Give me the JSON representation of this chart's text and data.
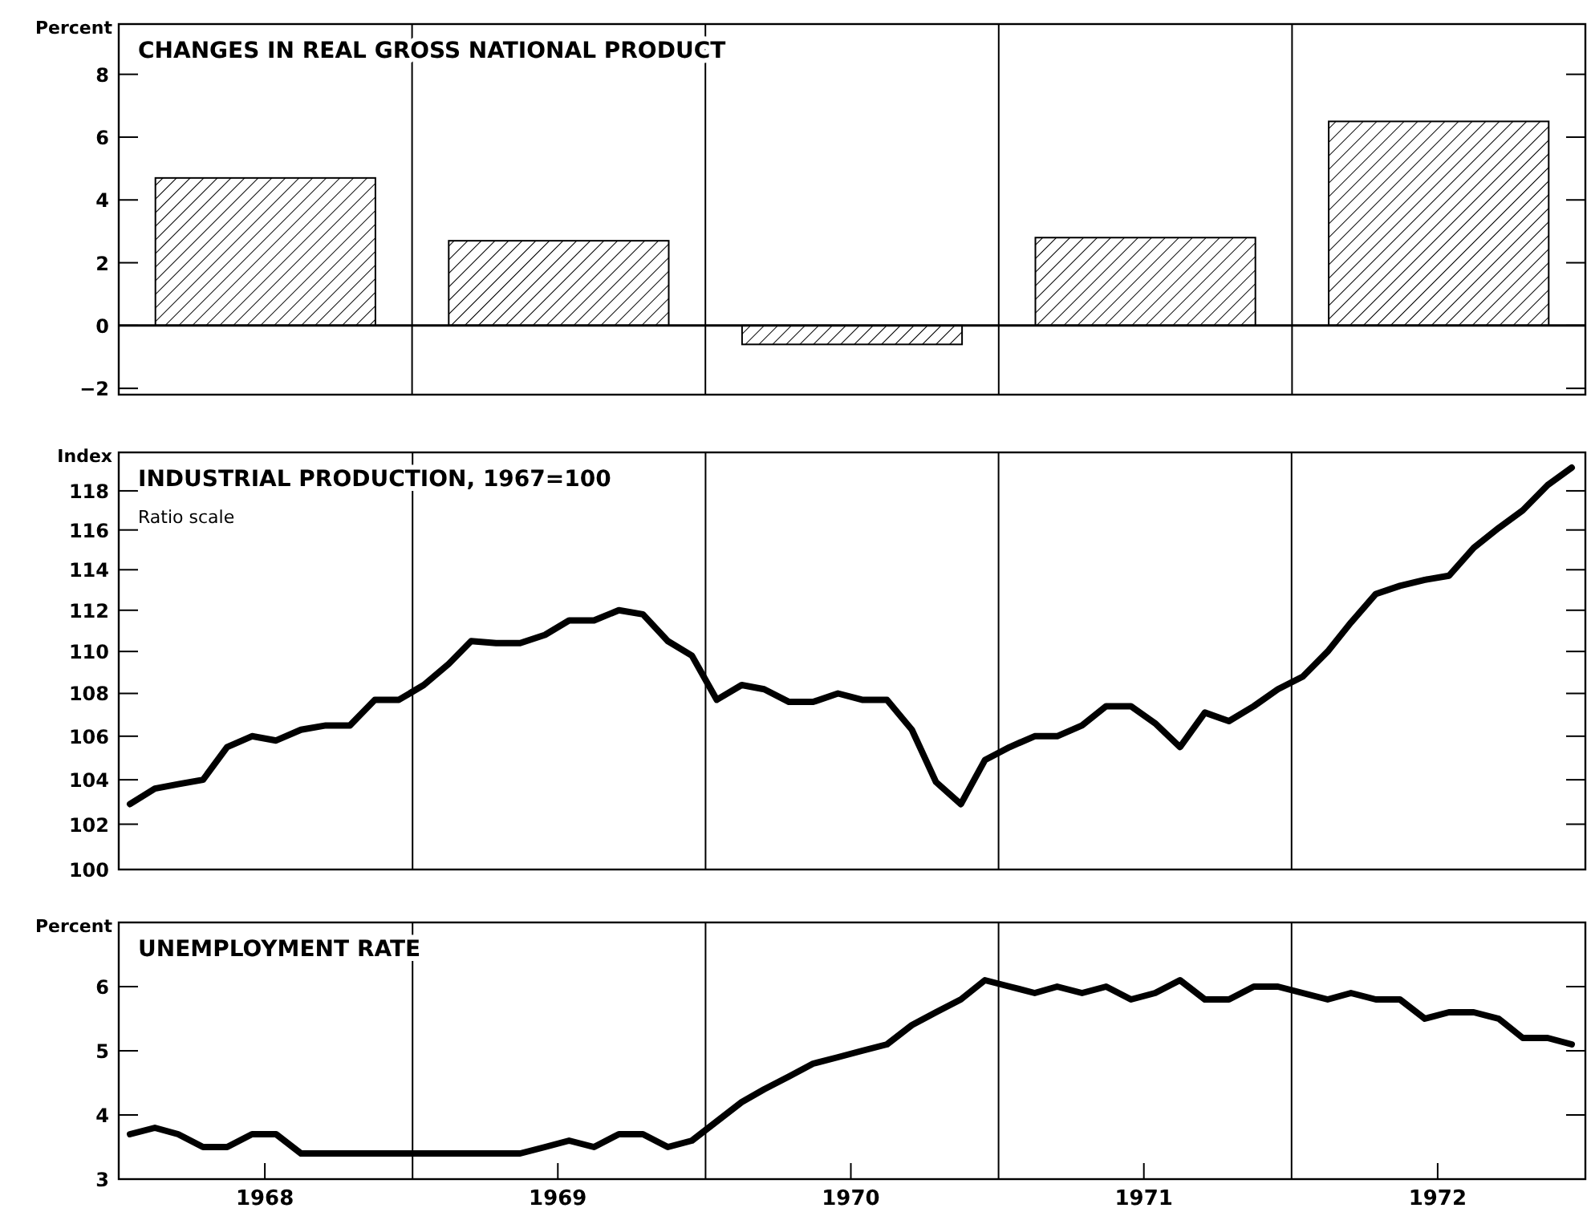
{
  "chart_data": [
    {
      "type": "bar",
      "title": "CHANGES IN REAL GROSS NATIONAL PRODUCT",
      "ylabel": "Percent",
      "categories": [
        null,
        null,
        null,
        null,
        null
      ],
      "values": [
        4.7,
        2.7,
        -0.6,
        2.8,
        6.5
      ],
      "color": "#000000",
      "ylim": [
        -2.2,
        9.6
      ],
      "yticks": [
        {
          "value": -2,
          "label": "−2"
        },
        0,
        2,
        4,
        6,
        8
      ],
      "tick_labels": "y"
    },
    {
      "type": "line",
      "title": "INDUSTRIAL PRODUCTION, 1967=100",
      "subtitle": "Ratio scale",
      "ylabel": "Index",
      "log": true,
      "x": [
        "1968-01-15",
        "1968-02-15",
        "1968-03-15",
        "1968-04-15",
        "1968-05-15",
        "1968-06-15",
        "1968-07-15",
        "1968-08-15",
        "1968-09-15",
        "1968-10-15",
        "1968-11-15",
        "1968-12-15",
        "1969-01-15",
        "1969-02-15",
        "1969-03-15",
        "1969-04-15",
        "1969-05-15",
        "1969-06-15",
        "1969-07-15",
        "1969-08-15",
        "1969-09-15",
        "1969-10-15",
        "1969-11-15",
        "1969-12-15",
        "1970-01-15",
        "1970-02-15",
        "1970-03-15",
        "1970-04-15",
        "1970-05-15",
        "1970-06-15",
        "1970-07-15",
        "1970-08-15",
        "1970-09-15",
        "1970-10-15",
        "1970-11-15",
        "1970-12-15",
        "1971-01-15",
        "1971-02-15",
        "1971-03-15",
        "1971-04-15",
        "1971-05-15",
        "1971-06-15",
        "1971-07-15",
        "1971-08-15",
        "1971-09-15",
        "1971-10-15",
        "1971-11-15",
        "1971-12-15",
        "1972-01-15",
        "1972-02-15",
        "1972-03-15",
        "1972-04-15",
        "1972-05-15",
        "1972-06-15",
        "1972-07-15",
        "1972-08-15",
        "1972-09-15",
        "1972-10-15",
        "1972-11-15",
        "1972-12-15"
      ],
      "series": [
        {
          "color": "#000000",
          "values": [
            102.9,
            103.6,
            103.8,
            104.0,
            105.5,
            106.0,
            105.8,
            106.3,
            106.5,
            106.5,
            107.7,
            107.7,
            108.4,
            109.4,
            110.5,
            110.4,
            110.4,
            110.8,
            111.5,
            111.5,
            112.0,
            111.8,
            110.5,
            109.8,
            107.7,
            108.4,
            108.2,
            107.6,
            107.6,
            108.0,
            107.7,
            107.7,
            106.3,
            103.9,
            102.9,
            104.9,
            105.5,
            106.0,
            106.0,
            106.5,
            107.4,
            107.4,
            106.6,
            105.5,
            107.1,
            106.7,
            107.4,
            108.2,
            108.8,
            110.0,
            111.4,
            112.8,
            113.2,
            113.5,
            113.7,
            115.1,
            116.1,
            117.0,
            118.3,
            119.2
          ]
        }
      ],
      "xlim": [
        "1968-01-01",
        "1973-01-01"
      ],
      "ylim": [
        100,
        120
      ],
      "yticks": [
        100,
        102,
        104,
        106,
        108,
        110,
        112,
        114,
        116,
        118
      ],
      "tick_labels": "y",
      "ref_lines": [
        {
          "axis": "x",
          "value": "1969-01-01"
        },
        {
          "axis": "x",
          "value": "1970-01-01"
        },
        {
          "axis": "x",
          "value": "1971-01-01"
        },
        {
          "axis": "x",
          "value": "1972-01-01"
        }
      ]
    },
    {
      "type": "line",
      "title": "UNEMPLOYMENT RATE",
      "ylabel": "Percent",
      "x": [
        "1968-01-15",
        "1968-02-15",
        "1968-03-15",
        "1968-04-15",
        "1968-05-15",
        "1968-06-15",
        "1968-07-15",
        "1968-08-15",
        "1968-09-15",
        "1968-10-15",
        "1968-11-15",
        "1968-12-15",
        "1969-01-15",
        "1969-02-15",
        "1969-03-15",
        "1969-04-15",
        "1969-05-15",
        "1969-06-15",
        "1969-07-15",
        "1969-08-15",
        "1969-09-15",
        "1969-10-15",
        "1969-11-15",
        "1969-12-15",
        "1970-01-15",
        "1970-02-15",
        "1970-03-15",
        "1970-04-15",
        "1970-05-15",
        "1970-06-15",
        "1970-07-15",
        "1970-08-15",
        "1970-09-15",
        "1970-10-15",
        "1970-11-15",
        "1970-12-15",
        "1971-01-15",
        "1971-02-15",
        "1971-03-15",
        "1971-04-15",
        "1971-05-15",
        "1971-06-15",
        "1971-07-15",
        "1971-08-15",
        "1971-09-15",
        "1971-10-15",
        "1971-11-15",
        "1971-12-15",
        "1972-01-15",
        "1972-02-15",
        "1972-03-15",
        "1972-04-15",
        "1972-05-15",
        "1972-06-15",
        "1972-07-15",
        "1972-08-15",
        "1972-09-15",
        "1972-10-15",
        "1972-11-15",
        "1972-12-15"
      ],
      "series": [
        {
          "color": "#000000",
          "values": [
            3.7,
            3.8,
            3.7,
            3.5,
            3.5,
            3.7,
            3.7,
            3.4,
            3.4,
            3.4,
            3.4,
            3.4,
            3.4,
            3.4,
            3.4,
            3.4,
            3.4,
            3.5,
            3.6,
            3.5,
            3.7,
            3.7,
            3.5,
            3.6,
            3.9,
            4.2,
            4.4,
            4.6,
            4.8,
            4.9,
            5.0,
            5.1,
            5.4,
            5.6,
            5.8,
            6.1,
            6.0,
            5.9,
            6.0,
            5.9,
            6.0,
            5.8,
            5.9,
            6.1,
            5.8,
            5.8,
            6.0,
            6.0,
            5.9,
            5.8,
            5.9,
            5.8,
            5.8,
            5.5,
            5.6,
            5.6,
            5.5,
            5.2,
            5.2,
            5.1
          ]
        }
      ],
      "xlim": [
        "1968-01-01",
        "1973-01-01"
      ],
      "xticks": [
        {
          "value": "1968-07-01",
          "label": "1968"
        },
        {
          "value": "1969-07-01",
          "label": "1969"
        },
        {
          "value": "1970-07-01",
          "label": "1970"
        },
        {
          "value": "1971-07-01",
          "label": "1971"
        },
        {
          "value": "1972-07-01",
          "label": "1972"
        }
      ],
      "ylim": [
        3,
        7
      ],
      "yticks": [
        3,
        4,
        5,
        6
      ],
      "ref_lines": [
        {
          "axis": "x",
          "value": "1969-01-01"
        },
        {
          "axis": "x",
          "value": "1970-01-01"
        },
        {
          "axis": "x",
          "value": "1971-01-01"
        },
        {
          "axis": "x",
          "value": "1972-01-01"
        }
      ]
    }
  ]
}
